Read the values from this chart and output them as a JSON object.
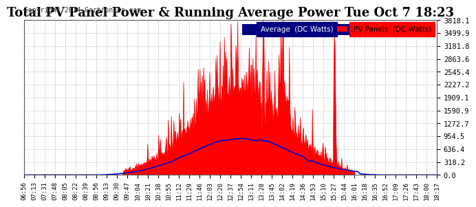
{
  "title": "Total PV Panel Power & Running Average Power Tue Oct 7 18:23",
  "copyright": "Copyright 2014 Cartronics.com",
  "legend_avg": "Average  (DC Watts)",
  "legend_pv": "PV Panels  (DC Watts)",
  "yticks": [
    0.0,
    318.2,
    636.4,
    954.5,
    1272.7,
    1590.9,
    1909.1,
    2227.2,
    2545.4,
    2863.6,
    3181.8,
    3499.9,
    3818.1
  ],
  "ymax": 3818.1,
  "background_color": "#ffffff",
  "plot_bg_color": "#ffffff",
  "pv_color": "#ff0000",
  "avg_color": "#0000cc",
  "title_fontsize": 13,
  "grid_color": "#aaaaaa",
  "xtick_labels": [
    "06:56",
    "07:13",
    "07:31",
    "07:48",
    "08:05",
    "08:22",
    "08:39",
    "08:56",
    "09:13",
    "09:30",
    "09:47",
    "10:04",
    "10:21",
    "10:38",
    "10:55",
    "11:12",
    "11:29",
    "11:46",
    "12:03",
    "12:20",
    "12:37",
    "12:54",
    "13:11",
    "13:28",
    "13:45",
    "14:02",
    "14:19",
    "14:36",
    "14:53",
    "15:10",
    "15:27",
    "15:44",
    "16:01",
    "16:18",
    "16:35",
    "16:52",
    "17:09",
    "17:26",
    "17:43",
    "18:00",
    "18:17"
  ]
}
